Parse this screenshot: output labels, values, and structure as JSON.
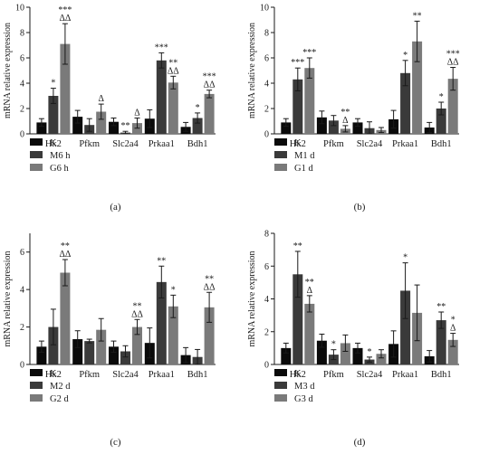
{
  "chart_data": [
    {
      "type": "bar",
      "panel_label": "(a)",
      "ylabel": "mRNA relative expression",
      "ylim": [
        0,
        10
      ],
      "yticks": [
        0,
        2,
        4,
        6,
        8,
        10
      ],
      "categories": [
        "Hk2",
        "Pfkm",
        "Slc2a4",
        "Prkaa1",
        "Bdh1"
      ],
      "series": [
        {
          "name": "K",
          "color": "#0a0a0a",
          "values": [
            0.9,
            1.35,
            0.95,
            1.2,
            0.55
          ],
          "errors": [
            0.3,
            0.5,
            0.3,
            0.7,
            0.35
          ],
          "sig": [
            "",
            "",
            "",
            "",
            ""
          ]
        },
        {
          "name": "M6 h",
          "color": "#3a3a3a",
          "values": [
            3.0,
            0.7,
            0.1,
            5.8,
            1.25
          ],
          "errors": [
            0.6,
            0.5,
            0.1,
            0.6,
            0.4
          ],
          "sig": [
            "*",
            "",
            "**",
            "***",
            "*"
          ]
        },
        {
          "name": "G6 h",
          "color": "#7a7a7a",
          "values": [
            7.1,
            1.75,
            0.85,
            4.05,
            3.15
          ],
          "errors": [
            1.6,
            0.6,
            0.4,
            0.5,
            0.3
          ],
          "sig": [
            "***\nΔΔ",
            "Δ",
            "Δ",
            "**\nΔΔ",
            "***\nΔΔ"
          ]
        }
      ]
    },
    {
      "type": "bar",
      "panel_label": "(b)",
      "ylabel": "mRNA relative expression",
      "ylim": [
        0,
        10
      ],
      "yticks": [
        0,
        2,
        4,
        6,
        8,
        10
      ],
      "categories": [
        "Hk2",
        "Pfkm",
        "Slc2a4",
        "Prkaa1",
        "Bdh1"
      ],
      "series": [
        {
          "name": "K",
          "color": "#0a0a0a",
          "values": [
            0.9,
            1.3,
            0.9,
            1.15,
            0.5
          ],
          "errors": [
            0.3,
            0.5,
            0.3,
            0.7,
            0.4
          ],
          "sig": [
            "",
            "",
            "",
            "",
            ""
          ]
        },
        {
          "name": "M1 d",
          "color": "#3a3a3a",
          "values": [
            4.3,
            1.05,
            0.45,
            4.8,
            2.0
          ],
          "errors": [
            0.9,
            0.4,
            0.5,
            1.0,
            0.5
          ],
          "sig": [
            "***",
            "",
            "",
            "*",
            "*"
          ]
        },
        {
          "name": "G1 d",
          "color": "#7a7a7a",
          "values": [
            5.2,
            0.4,
            0.3,
            7.3,
            4.35
          ],
          "errors": [
            0.8,
            0.25,
            0.2,
            1.6,
            0.9
          ],
          "sig": [
            "***",
            "**\nΔ",
            "",
            "**",
            "***\nΔΔ"
          ]
        }
      ]
    },
    {
      "type": "bar",
      "panel_label": "(c)",
      "ylabel": "mRNA relative expression",
      "ylim": [
        0,
        7
      ],
      "yticks": [
        0,
        2,
        4,
        6
      ],
      "categories": [
        "Hk2",
        "Pfkm",
        "Slc2a4",
        "Prkaa1",
        "Bdh1"
      ],
      "series": [
        {
          "name": "K",
          "color": "#0a0a0a",
          "values": [
            0.95,
            1.35,
            0.95,
            1.15,
            0.5
          ],
          "errors": [
            0.3,
            0.45,
            0.3,
            0.8,
            0.4
          ],
          "sig": [
            "",
            "",
            "",
            "",
            ""
          ]
        },
        {
          "name": "M2 d",
          "color": "#3a3a3a",
          "values": [
            2.0,
            1.25,
            0.7,
            4.4,
            0.4
          ],
          "errors": [
            0.95,
            0.1,
            0.3,
            0.85,
            0.4
          ],
          "sig": [
            "",
            "",
            "",
            "**",
            ""
          ]
        },
        {
          "name": "G2 d",
          "color": "#7a7a7a",
          "values": [
            4.9,
            1.85,
            2.0,
            3.1,
            3.05
          ],
          "errors": [
            0.7,
            0.6,
            0.4,
            0.6,
            0.8
          ],
          "sig": [
            "**\nΔΔ",
            "",
            "**\nΔΔ",
            "*",
            "**\nΔΔ"
          ]
        }
      ]
    },
    {
      "type": "bar",
      "panel_label": "(d)",
      "ylabel": "mRNA relative expression",
      "ylim": [
        0,
        8
      ],
      "yticks": [
        0,
        2,
        4,
        6,
        8
      ],
      "categories": [
        "Hk2",
        "Pfkm",
        "Slc2a4",
        "Prkaa1",
        "Bdh1"
      ],
      "series": [
        {
          "name": "K",
          "color": "#0a0a0a",
          "values": [
            1.0,
            1.45,
            1.0,
            1.25,
            0.5
          ],
          "errors": [
            0.3,
            0.4,
            0.3,
            0.8,
            0.35
          ],
          "sig": [
            "",
            "",
            "",
            "",
            ""
          ]
        },
        {
          "name": "M3 d",
          "color": "#3a3a3a",
          "values": [
            5.5,
            0.6,
            0.3,
            4.5,
            2.7
          ],
          "errors": [
            1.4,
            0.3,
            0.15,
            1.7,
            0.5
          ],
          "sig": [
            "**",
            "*",
            "*",
            "*",
            "**"
          ]
        },
        {
          "name": "G3 d",
          "color": "#7a7a7a",
          "values": [
            3.7,
            1.3,
            0.65,
            3.15,
            1.5
          ],
          "errors": [
            0.5,
            0.5,
            0.25,
            1.7,
            0.4
          ],
          "sig": [
            "**\nΔ",
            "",
            "",
            "",
            "*\nΔ"
          ]
        }
      ]
    }
  ]
}
